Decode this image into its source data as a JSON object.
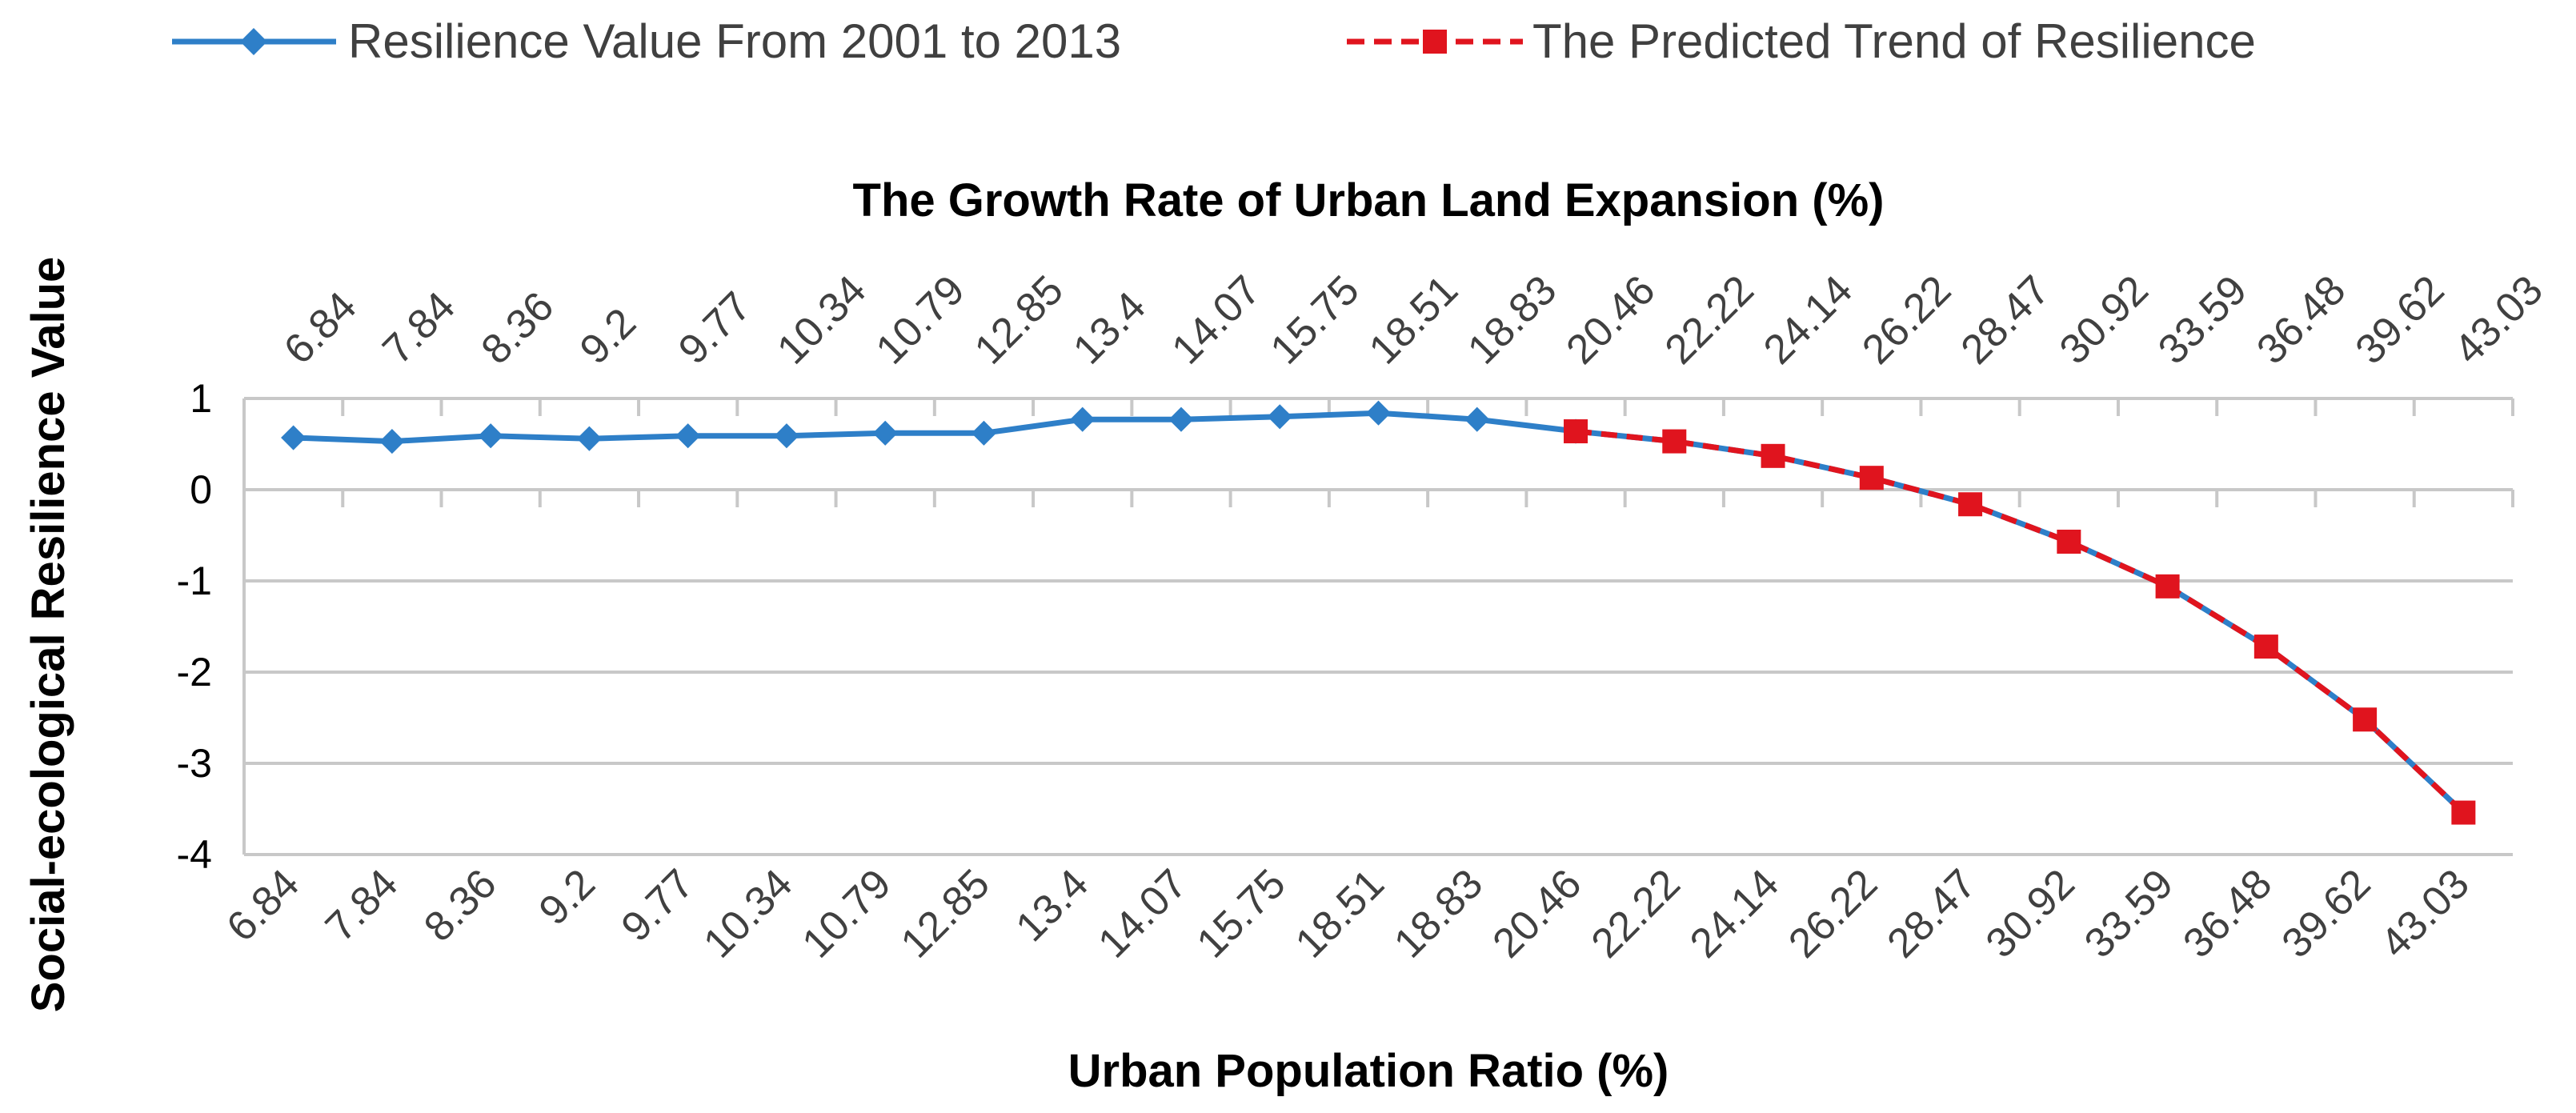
{
  "chart_data": {
    "type": "line",
    "x_top_label": "The Growth Rate of Urban Land Expansion (%)",
    "xlabel": "Urban Population Ratio (%)",
    "ylabel": "Social-ecological Resilience Value",
    "categories": [
      "6.84",
      "7.84",
      "8.36",
      "9.2",
      "9.77",
      "10.34",
      "10.79",
      "12.85",
      "13.4",
      "14.07",
      "15.75",
      "18.51",
      "18.83",
      "20.46",
      "22.22",
      "24.14",
      "26.22",
      "28.47",
      "30.92",
      "33.59",
      "36.48",
      "39.62",
      "43.03"
    ],
    "ylim": [
      -4,
      1
    ],
    "yticks": [
      1,
      0,
      -1,
      -2,
      -3,
      -4
    ],
    "legend_position": "top",
    "series": [
      {
        "name": "Resilience Value From 2001 to 2013",
        "color": "#2E7FC8",
        "style": "solid",
        "marker": "diamond",
        "values": [
          0.57,
          0.53,
          0.59,
          0.56,
          0.59,
          0.59,
          0.62,
          0.62,
          0.77,
          0.77,
          0.8,
          0.84,
          0.77,
          0.64,
          null,
          null,
          null,
          null,
          null,
          null,
          null,
          null,
          null
        ]
      },
      {
        "name": "The Predicted Trend of Resilience",
        "color": "#E0141E",
        "style": "dashed",
        "marker": "square",
        "values": [
          null,
          null,
          null,
          null,
          null,
          null,
          null,
          null,
          null,
          null,
          null,
          null,
          null,
          0.64,
          0.53,
          0.37,
          0.13,
          -0.16,
          -0.57,
          -1.06,
          -1.72,
          -2.52,
          -3.54
        ]
      }
    ]
  }
}
